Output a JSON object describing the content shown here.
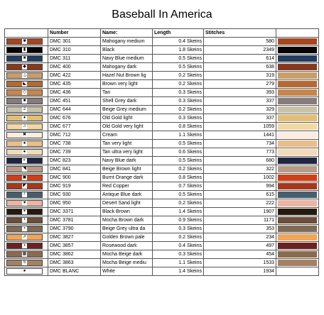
{
  "title": "Baseball In America",
  "headers": [
    "",
    "Number",
    "Name:",
    "Length",
    "Stitches",
    ""
  ],
  "rows": [
    {
      "brand": "DMC",
      "number": "301",
      "name": "Mahogany medium",
      "length": "0.4 Skeins",
      "stitches": "580",
      "color": "#a5461f",
      "symbol": "flag-icon",
      "glyph": "■"
    },
    {
      "brand": "DMC",
      "number": "310",
      "name": "Black",
      "length": "1.8 Skeins",
      "stitches": "2349",
      "color": "#060606",
      "symbol": "bottle-icon",
      "glyph": "▮"
    },
    {
      "brand": "DMC",
      "number": "311",
      "name": "Navy Blue medium",
      "length": "0.5 Skeins",
      "stitches": "614",
      "color": "#243d5e",
      "symbol": "square-icon",
      "glyph": "■"
    },
    {
      "brand": "DMC",
      "number": "400",
      "name": "Mahogany dark",
      "length": "0.5 Skeins",
      "stitches": "638",
      "color": "#86391f",
      "symbol": "diamond-icon",
      "glyph": "◆"
    },
    {
      "brand": "DMC",
      "number": "422",
      "name": "Hazel Nut Brown lig",
      "length": "0.2 Skeins",
      "stitches": "319",
      "color": "#c79e6c",
      "symbol": "anchor-icon",
      "glyph": "⚓"
    },
    {
      "brand": "DMC",
      "number": "435",
      "name": "Brown very light",
      "length": "0.2 Skeins",
      "stitches": "279",
      "color": "#b36a35",
      "symbol": "triangle-icon",
      "glyph": "◣"
    },
    {
      "brand": "DMC",
      "number": "436",
      "name": "Tan",
      "length": "0.3 Skeins",
      "stitches": "393",
      "color": "#c48750",
      "symbol": "diamond-outline-icon",
      "glyph": "◇"
    },
    {
      "brand": "DMC",
      "number": "451",
      "name": "Shell Grey dark",
      "length": "0.3 Skeins",
      "stitches": "337",
      "color": "#877b7b",
      "symbol": "square-icon",
      "glyph": "■"
    },
    {
      "brand": "DMC",
      "number": "644",
      "name": "Beige Grey medium",
      "length": "0.2 Skeins",
      "stitches": "329",
      "color": "#c9c2a9",
      "symbol": "number-two-icon",
      "glyph": "2"
    },
    {
      "brand": "DMC",
      "number": "676",
      "name": "Old Gold light",
      "length": "0.3 Skeins",
      "stitches": "337",
      "color": "#e3be76",
      "symbol": "bulb-icon",
      "glyph": "♦"
    },
    {
      "brand": "DMC",
      "number": "677",
      "name": "Old Gold very light",
      "length": "0.8 Skeins",
      "stitches": "1059",
      "color": "#f1d9a4",
      "symbol": "music-icon",
      "glyph": "♫"
    },
    {
      "brand": "DMC",
      "number": "712",
      "name": "Cream",
      "length": "1.1 Skeins",
      "stitches": "1441",
      "color": "#f9eedf",
      "symbol": "x-mark-icon",
      "glyph": "✖"
    },
    {
      "brand": "DMC",
      "number": "738",
      "name": "Tan very light",
      "length": "0.5 Skeins",
      "stitches": "734",
      "color": "#e9be8c",
      "symbol": "circle-icon",
      "glyph": "●"
    },
    {
      "brand": "DMC",
      "number": "739",
      "name": "Tan ultra very light",
      "length": "0.6 Skeins",
      "stitches": "773",
      "color": "#f3dbb9",
      "symbol": "spade-icon",
      "glyph": "♠"
    },
    {
      "brand": "DMC",
      "number": "823",
      "name": "Navy Blue dark",
      "length": "0.5 Skeins",
      "stitches": "680",
      "color": "#202640",
      "symbol": "fish-icon",
      "glyph": "◐"
    },
    {
      "brand": "DMC",
      "number": "841",
      "name": "Beige Brown light",
      "length": "0.2 Skeins",
      "stitches": "322",
      "color": "#b79b86",
      "symbol": "slash-icon",
      "glyph": "◥"
    },
    {
      "brand": "DMC",
      "number": "900",
      "name": "Burnt Orange dark",
      "length": "0.8 Skeins",
      "stitches": "1002",
      "color": "#cf4018",
      "symbol": "square-outline-icon",
      "glyph": "▣"
    },
    {
      "brand": "DMC",
      "number": "919",
      "name": "Red Copper",
      "length": "0.7 Skeins",
      "stitches": "994",
      "color": "#a6381c",
      "symbol": "diagonal-icon",
      "glyph": "◤"
    },
    {
      "brand": "DMC",
      "number": "930",
      "name": "Antique Blue dark",
      "length": "0.5 Skeins",
      "stitches": "615",
      "color": "#485e6c",
      "symbol": "brush-icon",
      "glyph": "/"
    },
    {
      "brand": "DMC",
      "number": "950",
      "name": "Desert Sand light",
      "length": "0.2 Skeins",
      "stitches": "222",
      "color": "#eab6a3",
      "symbol": "heart-icon",
      "glyph": "♥"
    },
    {
      "brand": "DMC",
      "number": "3371",
      "name": "Black Brown",
      "length": "1.4 Skeins",
      "stitches": "1907",
      "color": "#241a0e",
      "symbol": "star-icon",
      "glyph": "✶"
    },
    {
      "brand": "DMC",
      "number": "3781",
      "name": "Mocha Brown dark",
      "length": "0.9 Skeins",
      "stitches": "1171",
      "color": "#6a4f3a",
      "symbol": "dot-icon",
      "glyph": "•"
    },
    {
      "brand": "DMC",
      "number": "3790",
      "name": "Beige Grey ultra da",
      "length": "0.3 Skeins",
      "stitches": "353",
      "color": "#7f6a55",
      "symbol": "bullet-icon",
      "glyph": "▪"
    },
    {
      "brand": "DMC",
      "number": "3827",
      "name": "Golden Brown pale",
      "length": "0.2 Skeins",
      "stitches": "234",
      "color": "#f0a65a",
      "symbol": "arrow-icon",
      "glyph": "➚"
    },
    {
      "brand": "DMC",
      "number": "3857",
      "name": "Rosewood dark",
      "length": "0.4 Skeins",
      "stitches": "497",
      "color": "#6a2220",
      "symbol": "half-circle-icon",
      "glyph": "◖"
    },
    {
      "brand": "DMC",
      "number": "3862",
      "name": "Mocha Beige dark",
      "length": "0.3 Skeins",
      "stitches": "454",
      "color": "#8a6b4d",
      "symbol": "grid-icon",
      "glyph": "▦"
    },
    {
      "brand": "DMC",
      "number": "3863",
      "name": "Mocha Beige mediu",
      "length": "1.1 Skeins",
      "stitches": "1533",
      "color": "#a38163",
      "symbol": "letter-s-icon",
      "glyph": "S"
    },
    {
      "brand": "DMC",
      "number": "BLANC",
      "name": "White",
      "length": "1.4 Skeins",
      "stitches": "1934",
      "color": "#ffffff",
      "symbol": "dot-icon",
      "glyph": "●"
    }
  ]
}
